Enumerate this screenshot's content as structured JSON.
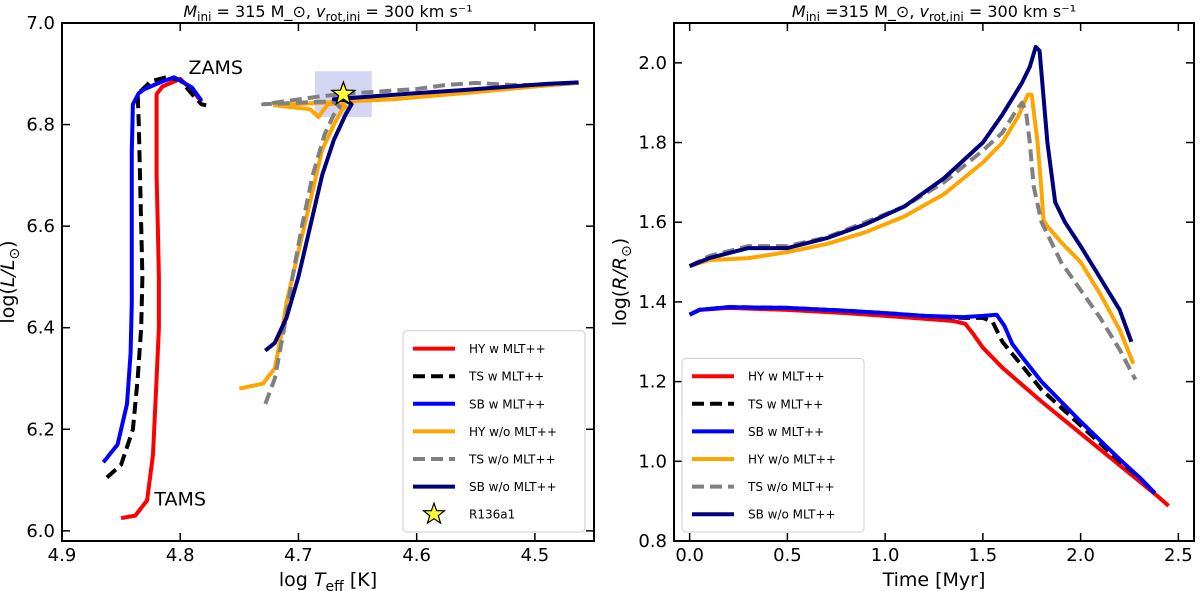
{
  "chart_data": [
    {
      "type": "line",
      "title": "M_ini = 315 M_⊙, v_rot,ini = 300 km s⁻¹",
      "xlabel": "log T_eff [K]",
      "ylabel": "log(L/L_⊙)",
      "xlim": [
        4.9,
        4.45
      ],
      "ylim": [
        5.98,
        7.0
      ],
      "x_inverted": true,
      "xticks": [
        4.9,
        4.8,
        4.7,
        4.6,
        4.5
      ],
      "xtick_labels": [
        "4.9",
        "4.8",
        "4.7",
        "4.6",
        "4.5"
      ],
      "yticks": [
        6.0,
        6.2,
        6.4,
        6.6,
        6.8,
        7.0
      ],
      "ytick_labels": [
        "6.0",
        "6.2",
        "6.4",
        "6.6",
        "6.8",
        "7.0"
      ],
      "legend_position": "lower-right",
      "annotations": [
        {
          "text": "ZAMS",
          "x": 4.77,
          "y": 6.9
        },
        {
          "text": "TAMS",
          "x": 4.8,
          "y": 6.05
        }
      ],
      "marker": {
        "name": "R136a1",
        "x": 4.662,
        "y": 6.86,
        "color": "#ffff33",
        "error_box": {
          "x": [
            4.686,
            4.638
          ],
          "y": [
            6.815,
            6.905
          ]
        }
      },
      "series": [
        {
          "name": "HY w MLT++",
          "color": "#ff0000",
          "dash": "solid",
          "points": [
            [
              4.85,
              6.025
            ],
            [
              4.838,
              6.03
            ],
            [
              4.828,
              6.06
            ],
            [
              4.823,
              6.15
            ],
            [
              4.82,
              6.3
            ],
            [
              4.818,
              6.4
            ],
            [
              4.818,
              6.5
            ],
            [
              4.819,
              6.6
            ],
            [
              4.82,
              6.7
            ],
            [
              4.82,
              6.8
            ],
            [
              4.82,
              6.86
            ],
            [
              4.815,
              6.875
            ],
            [
              4.8,
              6.89
            ],
            [
              4.79,
              6.868
            ],
            [
              4.782,
              6.845
            ]
          ]
        },
        {
          "name": "TS w MLT++",
          "color": "#000000",
          "dash": "dashed",
          "points": [
            [
              4.862,
              6.105
            ],
            [
              4.85,
              6.13
            ],
            [
              4.84,
              6.2
            ],
            [
              4.836,
              6.3
            ],
            [
              4.833,
              6.4
            ],
            [
              4.832,
              6.5
            ],
            [
              4.833,
              6.6
            ],
            [
              4.834,
              6.7
            ],
            [
              4.835,
              6.8
            ],
            [
              4.836,
              6.86
            ],
            [
              4.825,
              6.885
            ],
            [
              4.812,
              6.893
            ],
            [
              4.8,
              6.888
            ],
            [
              4.79,
              6.86
            ],
            [
              4.782,
              6.84
            ],
            [
              4.778,
              6.838
            ]
          ]
        },
        {
          "name": "SB w MLT++",
          "color": "#0000ff",
          "dash": "solid",
          "points": [
            [
              4.865,
              6.135
            ],
            [
              4.853,
              6.17
            ],
            [
              4.845,
              6.25
            ],
            [
              4.842,
              6.35
            ],
            [
              4.841,
              6.45
            ],
            [
              4.841,
              6.55
            ],
            [
              4.841,
              6.65
            ],
            [
              4.841,
              6.75
            ],
            [
              4.84,
              6.84
            ],
            [
              4.835,
              6.862
            ],
            [
              4.83,
              6.87
            ],
            [
              4.815,
              6.885
            ],
            [
              4.805,
              6.893
            ],
            [
              4.79,
              6.873
            ],
            [
              4.782,
              6.847
            ]
          ]
        },
        {
          "name": "HY w/o MLT++",
          "color": "#ffa500",
          "dash": "solid",
          "points": [
            [
              4.75,
              6.28
            ],
            [
              4.73,
              6.29
            ],
            [
              4.72,
              6.32
            ],
            [
              4.715,
              6.38
            ],
            [
              4.71,
              6.45
            ],
            [
              4.7,
              6.55
            ],
            [
              4.69,
              6.65
            ],
            [
              4.68,
              6.75
            ],
            [
              4.67,
              6.8
            ],
            [
              4.663,
              6.83
            ],
            [
              4.66,
              6.835
            ],
            [
              4.665,
              6.842
            ],
            [
              4.675,
              6.84
            ],
            [
              4.68,
              6.825
            ],
            [
              4.683,
              6.815
            ],
            [
              4.69,
              6.83
            ],
            [
              4.72,
              6.838
            ],
            [
              4.68,
              6.843
            ],
            [
              4.62,
              6.85
            ],
            [
              4.58,
              6.858
            ],
            [
              4.55,
              6.864
            ],
            [
              4.5,
              6.875
            ],
            [
              4.463,
              6.882
            ]
          ]
        },
        {
          "name": "TS w/o MLT++",
          "color": "#808080",
          "dash": "dashed",
          "points": [
            [
              4.728,
              6.25
            ],
            [
              4.72,
              6.3
            ],
            [
              4.712,
              6.4
            ],
            [
              4.705,
              6.5
            ],
            [
              4.697,
              6.6
            ],
            [
              4.688,
              6.7
            ],
            [
              4.678,
              6.78
            ],
            [
              4.67,
              6.82
            ],
            [
              4.665,
              6.835
            ],
            [
              4.67,
              6.845
            ],
            [
              4.68,
              6.845
            ],
            [
              4.7,
              6.843
            ],
            [
              4.73,
              6.84
            ],
            [
              4.68,
              6.856
            ],
            [
              4.64,
              6.864
            ],
            [
              4.6,
              6.87
            ],
            [
              4.575,
              6.878
            ],
            [
              4.55,
              6.882
            ],
            [
              4.52,
              6.878
            ],
            [
              4.5,
              6.878
            ],
            [
              4.463,
              6.882
            ]
          ]
        },
        {
          "name": "SB w/o MLT++",
          "color": "#00007f",
          "dash": "solid",
          "points": [
            [
              4.728,
              6.355
            ],
            [
              4.72,
              6.37
            ],
            [
              4.71,
              6.42
            ],
            [
              4.7,
              6.5
            ],
            [
              4.69,
              6.6
            ],
            [
              4.68,
              6.7
            ],
            [
              4.67,
              6.77
            ],
            [
              4.66,
              6.82
            ],
            [
              4.655,
              6.84
            ],
            [
              4.66,
              6.848
            ],
            [
              4.67,
              6.85
            ],
            [
              4.64,
              6.855
            ],
            [
              4.6,
              6.862
            ],
            [
              4.56,
              6.868
            ],
            [
              4.52,
              6.875
            ],
            [
              4.49,
              6.88
            ],
            [
              4.463,
              6.883
            ]
          ]
        }
      ]
    },
    {
      "type": "line",
      "title": "M_ini =315 M_⊙, v_rot,ini = 300 km s⁻¹",
      "xlabel": "Time [Myr]",
      "ylabel": "log(R/R_⊙)",
      "xlim": [
        -0.08,
        2.58
      ],
      "ylim": [
        0.8,
        2.1
      ],
      "xticks": [
        0.0,
        0.5,
        1.0,
        1.5,
        2.0,
        2.5
      ],
      "xtick_labels": [
        "0.0",
        "0.5",
        "1.0",
        "1.5",
        "2.0",
        "2.5"
      ],
      "yticks": [
        0.8,
        1.0,
        1.2,
        1.4,
        1.6,
        1.8,
        2.0
      ],
      "ytick_labels": [
        "0.8",
        "1.0",
        "1.2",
        "1.4",
        "1.6",
        "1.8",
        "2.0"
      ],
      "legend_position": "lower-left",
      "series": [
        {
          "name": "HY w MLT++",
          "color": "#ff0000",
          "dash": "solid",
          "points": [
            [
              0,
              1.368
            ],
            [
              0.05,
              1.38
            ],
            [
              0.2,
              1.385
            ],
            [
              0.5,
              1.38
            ],
            [
              0.8,
              1.372
            ],
            [
              1.0,
              1.365
            ],
            [
              1.2,
              1.358
            ],
            [
              1.35,
              1.352
            ],
            [
              1.41,
              1.345
            ],
            [
              1.45,
              1.32
            ],
            [
              1.5,
              1.285
            ],
            [
              1.6,
              1.235
            ],
            [
              1.8,
              1.15
            ],
            [
              2.0,
              1.07
            ],
            [
              2.2,
              0.99
            ],
            [
              2.3,
              0.95
            ],
            [
              2.4,
              0.91
            ],
            [
              2.45,
              0.888
            ]
          ]
        },
        {
          "name": "TS w MLT++",
          "color": "#000000",
          "dash": "dashed",
          "points": [
            [
              0,
              1.368
            ],
            [
              0.05,
              1.38
            ],
            [
              0.2,
              1.387
            ],
            [
              0.5,
              1.385
            ],
            [
              0.8,
              1.378
            ],
            [
              1.0,
              1.372
            ],
            [
              1.2,
              1.365
            ],
            [
              1.4,
              1.36
            ],
            [
              1.5,
              1.36
            ],
            [
              1.55,
              1.35
            ],
            [
              1.6,
              1.3
            ],
            [
              1.7,
              1.24
            ],
            [
              1.8,
              1.18
            ],
            [
              2.0,
              1.09
            ],
            [
              2.2,
              1.0
            ],
            [
              2.3,
              0.96
            ],
            [
              2.38,
              0.92
            ]
          ]
        },
        {
          "name": "SB w MLT++",
          "color": "#0000ff",
          "dash": "solid",
          "points": [
            [
              0,
              1.368
            ],
            [
              0.05,
              1.38
            ],
            [
              0.2,
              1.387
            ],
            [
              0.5,
              1.385
            ],
            [
              0.8,
              1.378
            ],
            [
              1.0,
              1.372
            ],
            [
              1.2,
              1.365
            ],
            [
              1.4,
              1.362
            ],
            [
              1.5,
              1.365
            ],
            [
              1.57,
              1.368
            ],
            [
              1.61,
              1.34
            ],
            [
              1.65,
              1.295
            ],
            [
              1.7,
              1.262
            ],
            [
              1.8,
              1.2
            ],
            [
              2.0,
              1.1
            ],
            [
              2.2,
              1.005
            ],
            [
              2.3,
              0.96
            ],
            [
              2.38,
              0.92
            ]
          ]
        },
        {
          "name": "HY w/o MLT++",
          "color": "#ffa500",
          "dash": "solid",
          "points": [
            [
              0,
              1.49
            ],
            [
              0.1,
              1.505
            ],
            [
              0.3,
              1.51
            ],
            [
              0.5,
              1.525
            ],
            [
              0.7,
              1.545
            ],
            [
              0.9,
              1.575
            ],
            [
              1.1,
              1.615
            ],
            [
              1.3,
              1.67
            ],
            [
              1.5,
              1.75
            ],
            [
              1.6,
              1.8
            ],
            [
              1.68,
              1.865
            ],
            [
              1.73,
              1.92
            ],
            [
              1.75,
              1.92
            ],
            [
              1.78,
              1.8
            ],
            [
              1.8,
              1.68
            ],
            [
              1.81,
              1.605
            ],
            [
              1.83,
              1.59
            ],
            [
              1.9,
              1.55
            ],
            [
              2.0,
              1.5
            ],
            [
              2.1,
              1.42
            ],
            [
              2.2,
              1.33
            ],
            [
              2.27,
              1.245
            ]
          ]
        },
        {
          "name": "TS w/o MLT++",
          "color": "#808080",
          "dash": "dashed",
          "points": [
            [
              0,
              1.49
            ],
            [
              0.1,
              1.515
            ],
            [
              0.3,
              1.54
            ],
            [
              0.5,
              1.54
            ],
            [
              0.7,
              1.562
            ],
            [
              0.9,
              1.6
            ],
            [
              1.1,
              1.64
            ],
            [
              1.3,
              1.7
            ],
            [
              1.5,
              1.78
            ],
            [
              1.6,
              1.825
            ],
            [
              1.67,
              1.88
            ],
            [
              1.7,
              1.9
            ],
            [
              1.72,
              1.88
            ],
            [
              1.74,
              1.8
            ],
            [
              1.76,
              1.69
            ],
            [
              1.8,
              1.6
            ],
            [
              1.9,
              1.5
            ],
            [
              2.0,
              1.43
            ],
            [
              2.1,
              1.36
            ],
            [
              2.2,
              1.28
            ],
            [
              2.28,
              1.205
            ]
          ]
        },
        {
          "name": "SB w/o MLT++",
          "color": "#00007f",
          "dash": "solid",
          "points": [
            [
              0,
              1.49
            ],
            [
              0.1,
              1.51
            ],
            [
              0.3,
              1.535
            ],
            [
              0.5,
              1.535
            ],
            [
              0.7,
              1.56
            ],
            [
              0.9,
              1.595
            ],
            [
              1.1,
              1.64
            ],
            [
              1.3,
              1.71
            ],
            [
              1.5,
              1.8
            ],
            [
              1.6,
              1.87
            ],
            [
              1.7,
              1.95
            ],
            [
              1.74,
              1.99
            ],
            [
              1.77,
              2.04
            ],
            [
              1.79,
              2.03
            ],
            [
              1.83,
              1.8
            ],
            [
              1.87,
              1.65
            ],
            [
              1.92,
              1.6
            ],
            [
              2.0,
              1.54
            ],
            [
              2.1,
              1.46
            ],
            [
              2.2,
              1.38
            ],
            [
              2.26,
              1.3
            ]
          ]
        }
      ]
    }
  ]
}
